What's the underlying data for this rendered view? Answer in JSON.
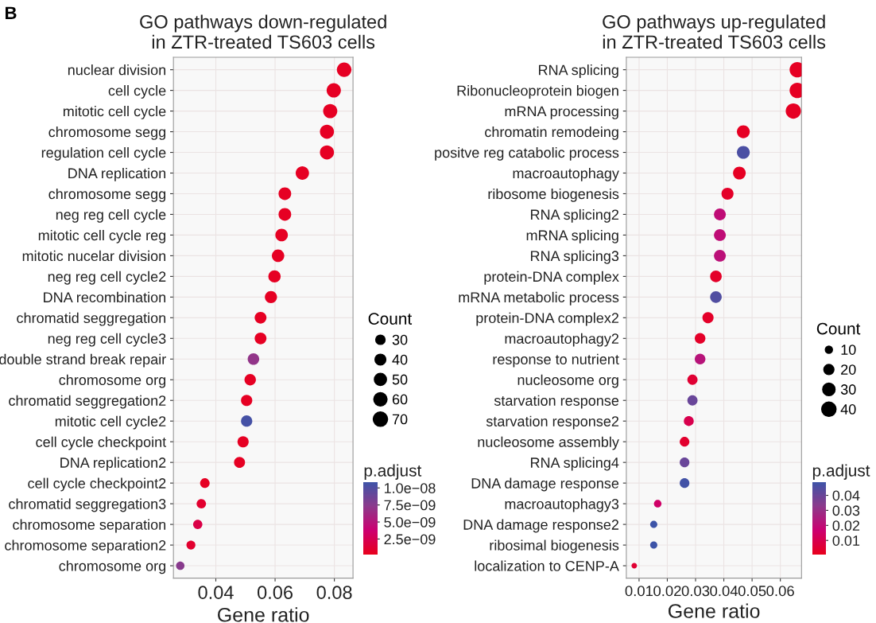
{
  "chart_data": [
    {
      "type": "bubble",
      "orientation": "horizontal",
      "title": "GO pathways down-regulated\nin ZTR-treated TS603 cells",
      "xlabel": "Gene ratio",
      "legend_title": "Count",
      "clabel": "p.adjust",
      "annotations": [
        "B"
      ],
      "categories": [
        "nuclear division",
        "cell cycle",
        "mitotic cell cycle",
        "chromosome segg",
        "regulation cell cycle",
        "DNA replication",
        "chromosome segg",
        "neg reg cell cycle",
        "mitotic cell cycle reg",
        "mitotic nucelar division",
        "neg reg cell cycle2",
        "DNA recombination",
        "chromatid seggregation",
        "neg reg cell cycle3",
        "double strand break repair",
        "chromosome org",
        "chromatid seggregation2",
        "mitotic cell cycle2",
        "cell cycle checkpoint",
        "DNA replication2",
        "cell cycle checkpoint2",
        "chromatid seggregation3",
        "chromosome separation",
        "chromosome separation2",
        "chromosome org"
      ],
      "series": [
        {
          "values": [
            0.0833,
            0.0798,
            0.0786,
            0.0775,
            0.0775,
            0.0692,
            0.0633,
            0.0633,
            0.0622,
            0.061,
            0.0598,
            0.0586,
            0.0551,
            0.0551,
            0.0527,
            0.0516,
            0.0504,
            0.0504,
            0.0492,
            0.048,
            0.0363,
            0.0351,
            0.0339,
            0.0316,
            0.028
          ],
          "sizes": [
            72,
            69,
            68,
            67,
            67,
            60,
            54,
            54,
            53,
            52,
            51,
            50,
            47,
            47,
            45,
            44,
            43,
            43,
            42,
            41,
            31,
            30,
            29,
            27,
            24
          ],
          "cvalues": [
            5e-10,
            5e-10,
            5e-10,
            5e-10,
            5e-10,
            5e-10,
            5e-10,
            5e-10,
            5e-10,
            5e-10,
            5e-10,
            5e-10,
            5e-10,
            5e-10,
            7e-09,
            5e-10,
            5e-10,
            1.05e-08,
            5e-10,
            5e-10,
            5e-10,
            1e-09,
            2e-09,
            1e-09,
            7.5e-09
          ]
        }
      ],
      "xlim": [
        0.0257,
        0.0863
      ],
      "xticks": [
        0.04,
        0.06,
        0.08
      ],
      "size_legend": [
        30,
        40,
        50,
        60,
        70
      ],
      "clim": [
        2e-10,
        1.09e-08
      ],
      "cticks": [
        {
          "value": 2.5e-09,
          "label": "2.5e−09"
        },
        {
          "value": 5e-09,
          "label": "5.0e−09"
        },
        {
          "value": 7.5e-09,
          "label": "7.5e−09"
        },
        {
          "value": 1e-08,
          "label": "1.0e−08"
        }
      ],
      "grid": true
    },
    {
      "type": "bubble",
      "orientation": "horizontal",
      "title": "GO pathways up-regulated\nin ZTR-treated TS603 cells",
      "xlabel": "Gene ratio",
      "legend_title": "Count",
      "clabel": "p.adjust",
      "categories": [
        "RNA splicing",
        "Ribonucleoprotein biogen",
        "mRNA processing",
        "chromatin remodeing",
        "positve reg catabolic process",
        "macroautophagy",
        "ribosome biogenesis",
        "RNA splicing2",
        "mRNA splicing",
        "RNA splicing3",
        "protein-DNA complex",
        "mRNA metabolic process",
        "protein-DNA complex2",
        "macroautophagy2",
        "response to nutrient",
        "nucleosome org",
        "starvation response",
        "starvation response2",
        "nucleosome assembly",
        "RNA splicing4",
        "DNA damage response",
        "macroautophagy3",
        "DNA damage response2",
        "ribosimal biogenesis",
        "localization to CENP-A"
      ],
      "series": [
        {
          "values": [
            0.066,
            0.066,
            0.0646,
            0.0469,
            0.0469,
            0.0455,
            0.0413,
            0.0386,
            0.0386,
            0.0386,
            0.0372,
            0.0372,
            0.0344,
            0.0316,
            0.0316,
            0.0289,
            0.0289,
            0.0276,
            0.0261,
            0.0261,
            0.0261,
            0.0166,
            0.0152,
            0.0152,
            0.0083
          ],
          "sizes": [
            46,
            46,
            45,
            32,
            32,
            31,
            28,
            27,
            27,
            27,
            26,
            26,
            24,
            22,
            22,
            20,
            20,
            19,
            18,
            18,
            18,
            11,
            10,
            10,
            6
          ],
          "cvalues": [
            0.002,
            0.002,
            0.002,
            0.002,
            0.046,
            0.002,
            0.003,
            0.02,
            0.02,
            0.021,
            0.003,
            0.045,
            0.003,
            0.003,
            0.022,
            0.005,
            0.04,
            0.01,
            0.004,
            0.04,
            0.048,
            0.015,
            0.049,
            0.049,
            0.005
          ]
        }
      ],
      "xlim": [
        0.0055,
        0.0675
      ],
      "xticks": [
        0.01,
        0.02,
        0.03,
        0.04,
        0.05,
        0.06
      ],
      "size_legend": [
        10,
        20,
        30,
        40
      ],
      "clim": [
        0.0005,
        0.049
      ],
      "cticks": [
        0.01,
        0.02,
        0.03,
        0.04
      ],
      "grid": true
    }
  ]
}
